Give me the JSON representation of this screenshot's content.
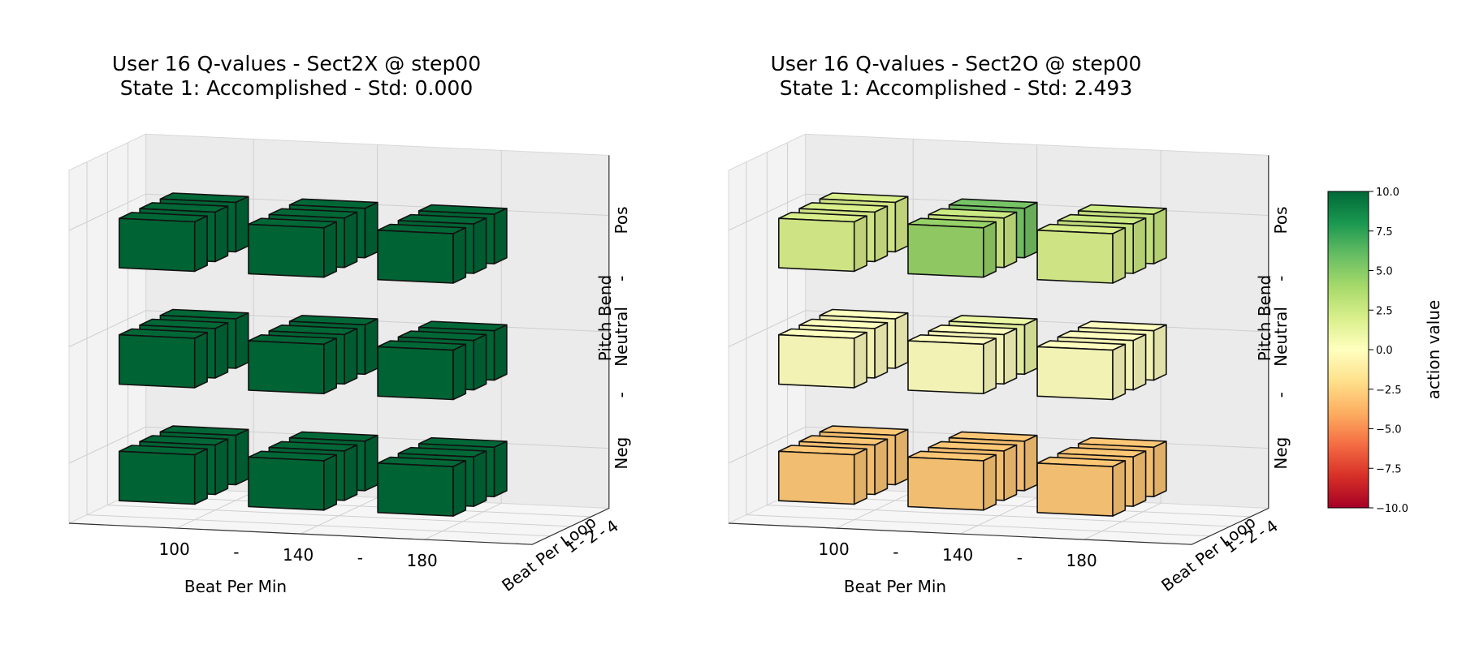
{
  "chart_data": [
    {
      "type": "bar3d",
      "title_line1": "User 16 Q-values  -  Sect2X @ step00",
      "title_line2": "State 1: Accomplished  -  Std: 0.000",
      "xlabel": "Beat Per Min",
      "ylabel": "Beat Per Loop",
      "zlabel": "Pitch Bend",
      "x_ticks": [
        "100",
        "-",
        "140",
        "-",
        "180"
      ],
      "y_ticks": [
        "1",
        "-",
        "2",
        "-",
        "4"
      ],
      "z_ticks": [
        "Neg",
        "-",
        "Neutral",
        "-",
        "Pos"
      ],
      "x_categories": [
        "100",
        "140",
        "180"
      ],
      "y_categories": [
        "1",
        "2",
        "4"
      ],
      "z_categories": [
        "Neg",
        "Neutral",
        "Pos"
      ],
      "values": [
        [
          [
            10,
            10,
            10
          ],
          [
            10,
            10,
            10
          ],
          [
            10,
            10,
            10
          ]
        ],
        [
          [
            10,
            10,
            10
          ],
          [
            10,
            10,
            10
          ],
          [
            10,
            10,
            10
          ]
        ],
        [
          [
            10,
            10,
            10
          ],
          [
            10,
            10,
            10
          ],
          [
            10,
            10,
            10
          ]
        ]
      ]
    },
    {
      "type": "bar3d",
      "title_line1": "User 16 Q-values  -  Sect2O @ step00",
      "title_line2": "State 1: Accomplished  -  Std: 2.493",
      "xlabel": "Beat Per Min",
      "ylabel": "Beat Per Loop",
      "zlabel": "Pitch Bend",
      "x_ticks": [
        "100",
        "-",
        "140",
        "-",
        "180"
      ],
      "y_ticks": [
        "1",
        "-",
        "2",
        "-",
        "4"
      ],
      "z_ticks": [
        "Neg",
        "-",
        "Neutral",
        "-",
        "Pos"
      ],
      "x_categories": [
        "100",
        "140",
        "180"
      ],
      "y_categories": [
        "1",
        "2",
        "4"
      ],
      "z_categories": [
        "Neg",
        "Neutral",
        "Pos"
      ],
      "values": [
        [
          [
            -3,
            0,
            2
          ],
          [
            -3,
            0,
            2
          ],
          [
            -3,
            0,
            2
          ]
        ],
        [
          [
            -3,
            0,
            4.5
          ],
          [
            -3,
            0,
            2.5
          ],
          [
            -3,
            1,
            5.5
          ]
        ],
        [
          [
            -3,
            0,
            2
          ],
          [
            -3,
            0,
            2.5
          ],
          [
            -3,
            0,
            2.5
          ]
        ]
      ]
    }
  ],
  "colorbar": {
    "label": "action value",
    "min": -10,
    "max": 10,
    "tick_labels": [
      "10.0",
      "7.5",
      "5.0",
      "2.5",
      "0.0",
      "−2.5",
      "−5.0",
      "−7.5",
      "−10.0"
    ],
    "tick_values": [
      10,
      7.5,
      5,
      2.5,
      0,
      -2.5,
      -5,
      -7.5,
      -10
    ],
    "colormap": [
      "#a50026",
      "#d73027",
      "#f46d43",
      "#fdae61",
      "#fee08b",
      "#ffffbf",
      "#d9ef8b",
      "#a6d96a",
      "#66bd63",
      "#1a9850",
      "#006837"
    ]
  }
}
